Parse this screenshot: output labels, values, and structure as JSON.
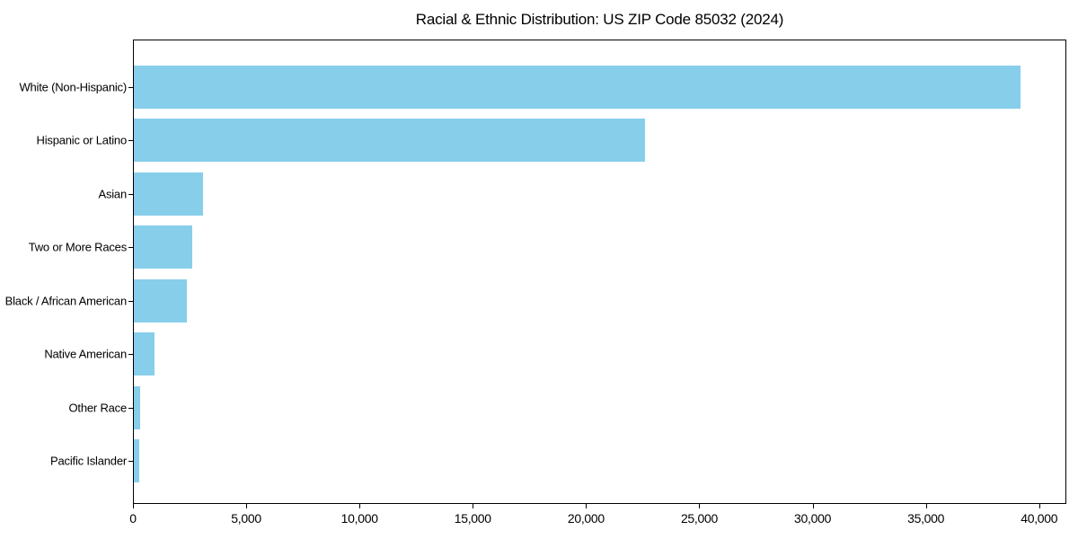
{
  "chart_data": {
    "type": "bar",
    "orientation": "horizontal",
    "title": "Racial & Ethnic Distribution: US ZIP Code 85032 (2024)",
    "categories": [
      "White (Non-Hispanic)",
      "Hispanic or Latino",
      "Asian",
      "Two or More Races",
      "Black / African American",
      "Native American",
      "Other Race",
      "Pacific Islander"
    ],
    "values": [
      39200,
      22600,
      3050,
      2580,
      2340,
      900,
      280,
      220
    ],
    "xlabel": "",
    "ylabel": "",
    "xlim": [
      0,
      41200
    ],
    "x_ticks": [
      0,
      5000,
      10000,
      15000,
      20000,
      25000,
      30000,
      35000,
      40000
    ],
    "x_tick_labels": [
      "0",
      "5,000",
      "10,000",
      "15,000",
      "20,000",
      "25,000",
      "30,000",
      "35,000",
      "40,000"
    ],
    "grid": false,
    "legend_position": "none",
    "bar_color": "#87CEEB"
  },
  "colors": {
    "background": "#FFFFFF",
    "bar": "#87CEEB",
    "spine": "#000000",
    "text": "#000000"
  }
}
